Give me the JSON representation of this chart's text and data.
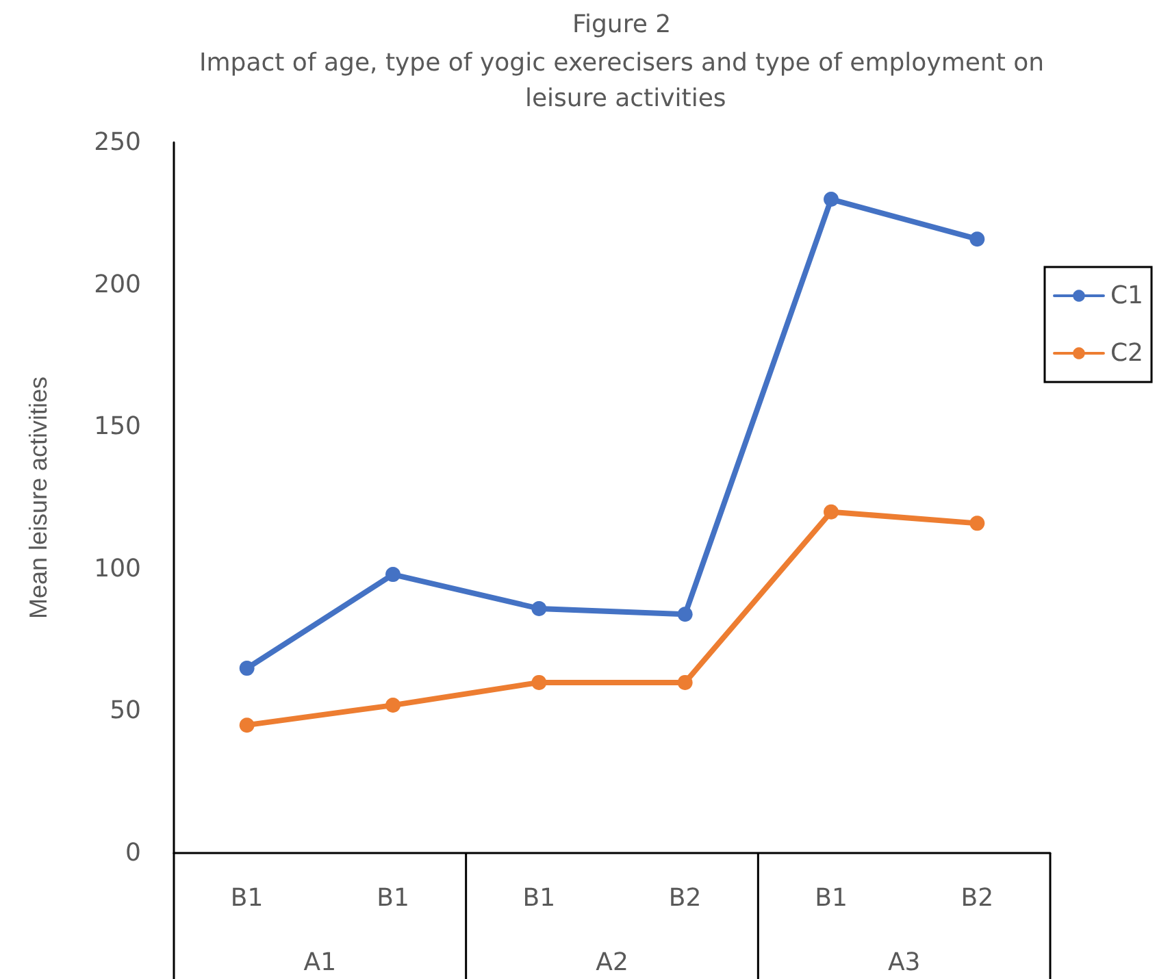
{
  "chart_data": {
    "type": "line",
    "title": "Figure 2",
    "subtitle": "Impact of age, type of yogic exerecisers and type of employment on leisure activities",
    "ylabel": "Mean leisure activities",
    "categories": [
      "B1",
      "B1",
      "B1",
      "B2",
      "B1",
      "B2"
    ],
    "annotations": [
      "A1",
      "A2",
      "A3"
    ],
    "series": [
      {
        "name": "C1",
        "color": "#4472c4",
        "values": [
          65,
          98,
          86,
          84,
          230,
          216
        ]
      },
      {
        "name": "C2",
        "color": "#ed7d31",
        "values": [
          45,
          52,
          60,
          60,
          120,
          116
        ]
      }
    ],
    "ylim": [
      0,
      250
    ],
    "yticks": [
      0,
      50,
      100,
      150,
      200,
      250
    ],
    "grid": false,
    "legend": "right",
    "marker": "circle",
    "line_style": "solid"
  }
}
